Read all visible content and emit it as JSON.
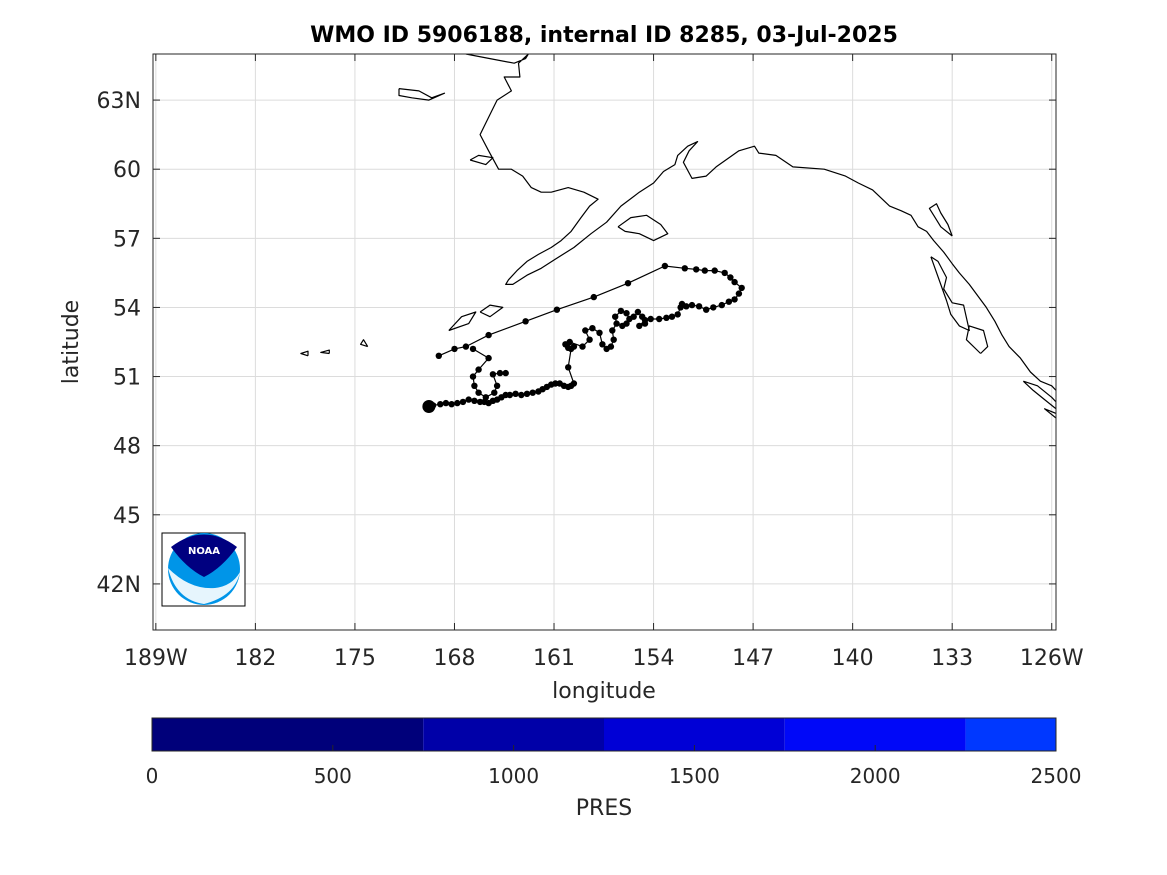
{
  "title": "WMO ID 5906188, internal ID 8285, 03-Jul-2025",
  "map": {
    "xlabel": "longitude",
    "ylabel": "latitude",
    "lon_range": [
      -189.2,
      -125.7
    ],
    "lat_range": [
      40.0,
      65.0
    ],
    "lon_ticks": [
      {
        "lon": -189,
        "label": "189W"
      },
      {
        "lon": -182,
        "label": "182"
      },
      {
        "lon": -175,
        "label": "175"
      },
      {
        "lon": -168,
        "label": "168"
      },
      {
        "lon": -161,
        "label": "161"
      },
      {
        "lon": -154,
        "label": "154"
      },
      {
        "lon": -147,
        "label": "147"
      },
      {
        "lon": -140,
        "label": "140"
      },
      {
        "lon": -133,
        "label": "133"
      },
      {
        "lon": -126,
        "label": "126W"
      }
    ],
    "lat_ticks": [
      {
        "lat": 63,
        "label": "63N"
      },
      {
        "lat": 60,
        "label": "60"
      },
      {
        "lat": 57,
        "label": "57"
      },
      {
        "lat": 54,
        "label": "54"
      },
      {
        "lat": 51,
        "label": "51"
      },
      {
        "lat": 48,
        "label": "48"
      },
      {
        "lat": 45,
        "label": "45"
      },
      {
        "lat": 42,
        "label": "42N"
      }
    ],
    "grid": true,
    "track_color": "#000000",
    "coast_color": "#000000",
    "track": [
      [
        -169.8,
        49.7
      ],
      [
        -169.5,
        49.75
      ],
      [
        -169.0,
        49.8
      ],
      [
        -168.6,
        49.85
      ],
      [
        -168.2,
        49.8
      ],
      [
        -167.8,
        49.85
      ],
      [
        -167.4,
        49.9
      ],
      [
        -167.0,
        50.0
      ],
      [
        -166.6,
        49.95
      ],
      [
        -166.2,
        49.9
      ],
      [
        -165.9,
        49.9
      ],
      [
        -165.6,
        49.85
      ],
      [
        -165.3,
        49.95
      ],
      [
        -165.0,
        50.0
      ],
      [
        -164.7,
        50.1
      ],
      [
        -164.4,
        50.2
      ],
      [
        -164.1,
        50.2
      ],
      [
        -163.7,
        50.25
      ],
      [
        -163.3,
        50.2
      ],
      [
        -162.9,
        50.25
      ],
      [
        -162.5,
        50.3
      ],
      [
        -162.1,
        50.35
      ],
      [
        -161.8,
        50.45
      ],
      [
        -161.5,
        50.55
      ],
      [
        -161.2,
        50.65
      ],
      [
        -160.9,
        50.7
      ],
      [
        -160.6,
        50.7
      ],
      [
        -160.3,
        50.6
      ],
      [
        -160.0,
        50.55
      ],
      [
        -159.8,
        50.6
      ],
      [
        -159.6,
        50.7
      ],
      [
        -160.0,
        51.4
      ],
      [
        -159.8,
        52.2
      ],
      [
        -159.6,
        52.3
      ],
      [
        -160.0,
        52.25
      ],
      [
        -160.2,
        52.4
      ],
      [
        -159.9,
        52.5
      ],
      [
        -159.0,
        52.3
      ],
      [
        -158.5,
        52.6
      ],
      [
        -158.8,
        53.0
      ],
      [
        -158.3,
        53.1
      ],
      [
        -157.8,
        52.9
      ],
      [
        -157.6,
        52.4
      ],
      [
        -157.3,
        52.2
      ],
      [
        -157.0,
        52.3
      ],
      [
        -156.8,
        52.6
      ],
      [
        -156.9,
        53.0
      ],
      [
        -156.6,
        53.3
      ],
      [
        -156.7,
        53.6
      ],
      [
        -156.3,
        53.85
      ],
      [
        -155.9,
        53.75
      ],
      [
        -155.7,
        53.5
      ],
      [
        -155.9,
        53.3
      ],
      [
        -156.2,
        53.2
      ],
      [
        -155.4,
        53.6
      ],
      [
        -155.1,
        53.8
      ],
      [
        -154.8,
        53.6
      ],
      [
        -154.6,
        53.3
      ],
      [
        -155.0,
        53.2
      ],
      [
        -154.6,
        53.45
      ],
      [
        -154.2,
        53.5
      ],
      [
        -153.6,
        53.5
      ],
      [
        -153.1,
        53.55
      ],
      [
        -152.7,
        53.6
      ],
      [
        -152.3,
        53.7
      ],
      [
        -152.1,
        54.0
      ],
      [
        -152.0,
        54.15
      ],
      [
        -151.7,
        54.05
      ],
      [
        -151.3,
        54.1
      ],
      [
        -150.8,
        54.05
      ],
      [
        -150.3,
        53.9
      ],
      [
        -149.8,
        54.0
      ],
      [
        -149.2,
        54.1
      ],
      [
        -148.7,
        54.25
      ],
      [
        -148.3,
        54.35
      ],
      [
        -148.0,
        54.6
      ],
      [
        -147.8,
        54.85
      ],
      [
        -148.3,
        55.1
      ],
      [
        -148.6,
        55.3
      ],
      [
        -149.0,
        55.5
      ],
      [
        -149.7,
        55.6
      ],
      [
        -150.4,
        55.6
      ],
      [
        -151.0,
        55.65
      ],
      [
        -151.8,
        55.7
      ],
      [
        -153.2,
        55.8
      ],
      [
        -155.8,
        55.05
      ],
      [
        -158.2,
        54.45
      ],
      [
        -160.8,
        53.9
      ],
      [
        -163.0,
        53.4
      ],
      [
        -165.6,
        52.8
      ],
      [
        -167.2,
        52.3
      ],
      [
        -168.0,
        52.2
      ],
      [
        -169.1,
        51.9
      ]
    ],
    "track_branch": [
      [
        -166.7,
        52.2
      ],
      [
        -165.6,
        51.8
      ],
      [
        -166.3,
        51.3
      ],
      [
        -166.7,
        51.0
      ],
      [
        -166.6,
        50.6
      ],
      [
        -166.3,
        50.3
      ],
      [
        -165.8,
        50.1
      ],
      [
        -165.2,
        50.3
      ],
      [
        -165.0,
        50.6
      ],
      [
        -165.3,
        51.1
      ],
      [
        -164.8,
        51.15
      ],
      [
        -164.4,
        51.15
      ]
    ],
    "start_marker": [
      -169.8,
      49.7
    ],
    "coastlines": [
      [
        [
          -167.2,
          65
        ],
        [
          -165.5,
          64.8
        ],
        [
          -163.8,
          64.6
        ],
        [
          -163.0,
          64.8
        ],
        [
          -162.8,
          65
        ],
        [
          -163.5,
          64.6
        ],
        [
          -163.4,
          64.0
        ],
        [
          -164.5,
          64.0
        ],
        [
          -164.0,
          63.4
        ],
        [
          -165.0,
          63.0
        ],
        [
          -165.4,
          62.5
        ],
        [
          -166.2,
          61.5
        ],
        [
          -165.6,
          60.8
        ],
        [
          -164.9,
          60.0
        ],
        [
          -164.0,
          60.0
        ],
        [
          -163.2,
          59.7
        ],
        [
          -162.6,
          59.2
        ],
        [
          -161.9,
          59.0
        ],
        [
          -161.2,
          59.0
        ],
        [
          -160.0,
          59.2
        ],
        [
          -158.9,
          59.0
        ],
        [
          -157.9,
          58.7
        ],
        [
          -158.5,
          58.4
        ],
        [
          -159.1,
          57.9
        ],
        [
          -159.8,
          57.3
        ],
        [
          -160.5,
          56.9
        ],
        [
          -161.2,
          56.6
        ],
        [
          -162.1,
          56.3
        ],
        [
          -162.9,
          56.0
        ],
        [
          -163.6,
          55.6
        ],
        [
          -164.2,
          55.2
        ],
        [
          -164.4,
          55.0
        ],
        [
          -163.9,
          55.0
        ],
        [
          -162.9,
          55.4
        ],
        [
          -161.9,
          55.7
        ],
        [
          -160.9,
          56.1
        ],
        [
          -159.6,
          56.6
        ],
        [
          -158.4,
          57.2
        ],
        [
          -157.3,
          57.7
        ],
        [
          -156.3,
          58.4
        ],
        [
          -155.0,
          59.0
        ],
        [
          -154.0,
          59.4
        ],
        [
          -153.3,
          59.9
        ],
        [
          -152.5,
          60.2
        ],
        [
          -152.3,
          60.6
        ],
        [
          -151.6,
          61.0
        ],
        [
          -150.9,
          61.2
        ],
        [
          -151.5,
          60.8
        ],
        [
          -151.9,
          60.3
        ],
        [
          -151.3,
          59.6
        ],
        [
          -150.3,
          59.7
        ],
        [
          -149.6,
          60.1
        ],
        [
          -148.0,
          60.8
        ],
        [
          -146.9,
          61.0
        ],
        [
          -146.6,
          60.7
        ],
        [
          -145.4,
          60.6
        ],
        [
          -144.2,
          60.1
        ],
        [
          -142.0,
          60.0
        ],
        [
          -140.5,
          59.7
        ],
        [
          -139.6,
          59.4
        ],
        [
          -138.6,
          59.1
        ],
        [
          -137.4,
          58.4
        ],
        [
          -136.6,
          58.2
        ],
        [
          -135.9,
          58.0
        ],
        [
          -135.4,
          57.5
        ],
        [
          -134.8,
          57.3
        ],
        [
          -134.3,
          56.9
        ],
        [
          -133.6,
          56.4
        ],
        [
          -133.0,
          55.9
        ],
        [
          -132.5,
          55.5
        ],
        [
          -131.8,
          55.0
        ],
        [
          -131.2,
          54.5
        ],
        [
          -130.6,
          54.0
        ],
        [
          -130.0,
          53.4
        ],
        [
          -129.5,
          52.8
        ],
        [
          -129.0,
          52.3
        ],
        [
          -128.2,
          51.8
        ],
        [
          -127.5,
          51.2
        ],
        [
          -126.8,
          50.8
        ],
        [
          -126.0,
          50.6
        ],
        [
          -125.7,
          50.4
        ]
      ],
      [
        [
          -156.5,
          57.5
        ],
        [
          -155.6,
          57.9
        ],
        [
          -154.5,
          58.0
        ],
        [
          -153.5,
          57.6
        ],
        [
          -153.0,
          57.2
        ],
        [
          -154.0,
          56.9
        ],
        [
          -155.0,
          57.2
        ],
        [
          -156.0,
          57.3
        ],
        [
          -156.5,
          57.5
        ]
      ],
      [
        [
          -133.0,
          57.1
        ],
        [
          -133.8,
          57.5
        ],
        [
          -134.3,
          58.0
        ],
        [
          -134.6,
          58.3
        ],
        [
          -134.1,
          58.5
        ],
        [
          -133.8,
          58.1
        ],
        [
          -133.3,
          57.6
        ],
        [
          -133.0,
          57.1
        ]
      ],
      [
        [
          -134.5,
          56.2
        ],
        [
          -134.0,
          56.0
        ],
        [
          -133.4,
          55.3
        ],
        [
          -133.6,
          54.8
        ],
        [
          -133.0,
          54.2
        ],
        [
          -132.2,
          54.1
        ],
        [
          -131.8,
          53.0
        ],
        [
          -132.5,
          53.2
        ],
        [
          -133.1,
          53.7
        ],
        [
          -133.4,
          54.3
        ],
        [
          -134.5,
          56.2
        ]
      ],
      [
        [
          -131.0,
          52.0
        ],
        [
          -130.5,
          52.3
        ],
        [
          -130.8,
          53.0
        ],
        [
          -131.8,
          53.2
        ],
        [
          -132.0,
          52.6
        ],
        [
          -131.0,
          52.0
        ]
      ],
      [
        [
          -128.0,
          50.8
        ],
        [
          -127.0,
          50.6
        ],
        [
          -126.0,
          50.1
        ],
        [
          -125.7,
          49.9
        ],
        [
          -125.7,
          49.6
        ],
        [
          -126.5,
          50.0
        ],
        [
          -127.3,
          50.4
        ],
        [
          -128.0,
          50.8
        ]
      ],
      [
        [
          -125.7,
          49.4
        ],
        [
          -126.5,
          49.6
        ],
        [
          -125.7,
          49.2
        ]
      ],
      [
        [
          -166.9,
          60.4
        ],
        [
          -166.3,
          60.6
        ],
        [
          -165.3,
          60.5
        ],
        [
          -165.8,
          60.2
        ],
        [
          -166.9,
          60.4
        ]
      ],
      [
        [
          -171.9,
          63.5
        ],
        [
          -170.5,
          63.4
        ],
        [
          -169.6,
          63.1
        ],
        [
          -168.7,
          63.3
        ],
        [
          -169.8,
          63.0
        ],
        [
          -171.0,
          63.1
        ],
        [
          -171.9,
          63.2
        ],
        [
          -171.9,
          63.5
        ]
      ],
      [
        [
          -168.4,
          53.0
        ],
        [
          -167.5,
          53.6
        ],
        [
          -166.5,
          53.8
        ],
        [
          -167.0,
          53.3
        ],
        [
          -168.4,
          53.0
        ]
      ],
      [
        [
          -166.2,
          53.8
        ],
        [
          -165.5,
          54.1
        ],
        [
          -164.6,
          54.0
        ],
        [
          -165.5,
          53.6
        ],
        [
          -166.2,
          53.8
        ]
      ],
      [
        [
          -176.8,
          52.0
        ],
        [
          -177.4,
          52.05
        ],
        [
          -176.8,
          52.15
        ],
        [
          -176.8,
          52.0
        ]
      ],
      [
        [
          -178.3,
          51.9
        ],
        [
          -178.8,
          52.0
        ],
        [
          -178.3,
          52.1
        ],
        [
          -178.3,
          51.9
        ]
      ],
      [
        [
          -174.1,
          52.3
        ],
        [
          -174.6,
          52.4
        ],
        [
          -174.4,
          52.6
        ],
        [
          -174.1,
          52.3
        ]
      ]
    ]
  },
  "colorbar": {
    "label": "PRES",
    "range": [
      0,
      2500
    ],
    "ticks": [
      "0",
      "500",
      "1000",
      "1500",
      "2000",
      "2500"
    ],
    "segments": [
      {
        "from": 0,
        "to": 750,
        "color": "#00007a"
      },
      {
        "from": 750,
        "to": 1250,
        "color": "#0000a8"
      },
      {
        "from": 1250,
        "to": 1750,
        "color": "#0000d6"
      },
      {
        "from": 1750,
        "to": 2250,
        "color": "#0008f8"
      },
      {
        "from": 2250,
        "to": 2500,
        "color": "#0038ff"
      }
    ]
  },
  "logo": {
    "text": "NOAA",
    "colors": {
      "navy": "#000080",
      "sky": "#0095e8"
    }
  }
}
